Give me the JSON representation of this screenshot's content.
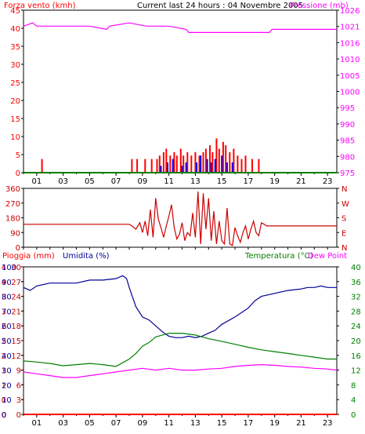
{
  "chart_data": [
    {
      "id": "wind-pressure",
      "type": "line",
      "title": "Current last 24 hours : 04 Novembre 2005",
      "ylabel_left": "Forza vento (kmh)",
      "ylabel_right": "Pressione (mb)",
      "x_ticks": [
        "01",
        "03",
        "05",
        "07",
        "09",
        "11",
        "13",
        "15",
        "17",
        "19",
        "21",
        "23"
      ],
      "y_left_ticks": [
        "0",
        "5",
        "10",
        "15",
        "20",
        "25",
        "30",
        "35",
        "40",
        "45"
      ],
      "ylim_left": [
        0,
        47.5
      ],
      "y_right_ticks": [
        "975",
        "980",
        "985",
        "990",
        "995",
        "1000",
        "1005",
        "1010",
        "1016",
        "1021",
        "1026"
      ],
      "ylim_right": [
        975,
        1026
      ],
      "colors": {
        "wind": "#ff0000",
        "gust": "#0000ff",
        "pressure": "#ff00ff",
        "baseline": "#008000"
      },
      "series": [
        {
          "name": "pressure",
          "axis": "right",
          "x": [
            0,
            0.7,
            1,
            3,
            5,
            6.3,
            6.5,
            8,
            9.3,
            11,
            12.3,
            12.5,
            15,
            17,
            18.6,
            18.8,
            20.8,
            21,
            23.7
          ],
          "y": [
            1021,
            1022,
            1021,
            1021,
            1021,
            1020,
            1021,
            1022,
            1021,
            1021,
            1020,
            1019,
            1019,
            1019,
            1019,
            1020,
            1020,
            1020,
            1020
          ]
        },
        {
          "name": "wind",
          "axis": "left",
          "type": "bar",
          "x": [
            1.4,
            8.2,
            8.6,
            9.2,
            9.7,
            10.1,
            10.3,
            10.6,
            10.8,
            11.1,
            11.4,
            11.6,
            11.9,
            12.1,
            12.4,
            12.7,
            13.0,
            13.3,
            13.6,
            13.8,
            14.1,
            14.3,
            14.6,
            14.8,
            15.1,
            15.3,
            15.6,
            15.9,
            16.2,
            16.5,
            16.8,
            17.3,
            17.8
          ],
          "y": [
            4,
            4,
            4,
            4,
            4,
            4,
            5,
            6,
            7,
            5,
            6,
            5,
            7,
            5,
            6,
            5,
            6,
            5,
            6,
            7,
            8,
            6,
            10,
            7,
            9,
            8,
            6,
            7,
            5,
            4,
            5,
            4,
            4
          ]
        },
        {
          "name": "gust",
          "axis": "left",
          "type": "bar",
          "x": [
            10.4,
            10.9,
            11.3,
            12.0,
            12.3,
            13.1,
            13.4,
            13.9,
            14.2,
            14.5,
            15.0,
            15.4,
            15.8
          ],
          "y": [
            2,
            3,
            4,
            2,
            3,
            3,
            5,
            4,
            3,
            4,
            5,
            3,
            3
          ]
        },
        {
          "name": "baseline",
          "axis": "left",
          "x": [
            0,
            23.7
          ],
          "y": [
            0,
            0
          ]
        }
      ]
    },
    {
      "id": "direction",
      "type": "line",
      "x_ticks": [],
      "y_left_ticks": [
        "0",
        "90",
        "180",
        "270",
        "360"
      ],
      "ylim_left": [
        0,
        360
      ],
      "y_right_ticks": [
        "N",
        "E",
        "S",
        "W",
        "N"
      ],
      "colors": {
        "direction": "#cc0000"
      },
      "series": [
        {
          "name": "direction",
          "axis": "left",
          "x": [
            0,
            1,
            2,
            3,
            4,
            5,
            6,
            7,
            8,
            8.2,
            8.5,
            8.8,
            9.0,
            9.2,
            9.4,
            9.6,
            9.8,
            10.0,
            10.2,
            10.4,
            10.6,
            10.8,
            11.0,
            11.2,
            11.4,
            11.6,
            11.8,
            12.0,
            12.2,
            12.4,
            12.6,
            12.8,
            13.0,
            13.2,
            13.4,
            13.6,
            13.8,
            14.0,
            14.2,
            14.4,
            14.6,
            14.8,
            15.0,
            15.2,
            15.4,
            15.6,
            15.8,
            16.0,
            16.2,
            16.4,
            16.6,
            16.8,
            17.0,
            17.2,
            17.4,
            17.6,
            17.8,
            18.0,
            18.2,
            18.4,
            19,
            20,
            21,
            22,
            23.7
          ],
          "y": [
            140,
            140,
            140,
            140,
            140,
            140,
            140,
            140,
            140,
            130,
            110,
            150,
            90,
            160,
            70,
            230,
            60,
            300,
            170,
            120,
            60,
            130,
            190,
            260,
            120,
            50,
            80,
            150,
            40,
            90,
            70,
            210,
            60,
            340,
            20,
            330,
            110,
            300,
            40,
            220,
            20,
            160,
            40,
            20,
            240,
            20,
            10,
            120,
            70,
            30,
            90,
            130,
            50,
            110,
            160,
            90,
            70,
            150,
            140,
            130,
            130,
            130,
            130,
            130,
            130
          ]
        }
      ]
    },
    {
      "id": "rain-humidity-temp",
      "type": "line",
      "ylabel_left": "Pioggia (mm)",
      "ylabel_left2": "Umidita (%)",
      "ylabel_right": "Temperatura (°C)",
      "ylabel_right2": "Dew Point",
      "x_ticks": [
        "01",
        "03",
        "05",
        "07",
        "09",
        "11",
        "13",
        "15",
        "17",
        "19",
        "21",
        "23"
      ],
      "y_left_ticks": [
        "0",
        "0",
        "1",
        "1",
        "2",
        "2",
        "2",
        "3",
        "3",
        "4",
        "4"
      ],
      "y_left2_ticks": [
        "0",
        "3",
        "6",
        "9",
        "12",
        "15",
        "18",
        "21",
        "24",
        "27",
        "30"
      ],
      "y_left3_ticks": [
        "0",
        "10",
        "20",
        "30",
        "40",
        "50",
        "60",
        "70",
        "80",
        "90",
        "100"
      ],
      "ylim_left3": [
        0,
        100
      ],
      "y_right_ticks": [
        "0",
        "4",
        "8",
        "12",
        "16",
        "20",
        "24",
        "28",
        "32",
        "36",
        "40"
      ],
      "ylim_right": [
        0,
        40
      ],
      "colors": {
        "humidity": "#000099",
        "temperature": "#008000",
        "dewpoint": "#ff00ff",
        "rain": "#ff0000"
      },
      "series": [
        {
          "name": "humidity",
          "axis": "left3",
          "x": [
            0,
            0.5,
            1,
            2,
            3,
            4,
            5,
            6,
            7,
            7.5,
            7.8,
            8.0,
            8.5,
            9.0,
            9.5,
            10,
            10.5,
            11,
            11.5,
            12,
            12.5,
            13,
            13.5,
            14,
            14.5,
            15,
            16,
            17,
            17.5,
            18,
            19,
            20,
            21,
            21.5,
            22,
            22.5,
            23,
            23.7
          ],
          "y": [
            86,
            84,
            87,
            89,
            89,
            89,
            91,
            91,
            92,
            94,
            92,
            86,
            73,
            66,
            64,
            60,
            56,
            53,
            52,
            52,
            53,
            52,
            53,
            55,
            57,
            61,
            66,
            72,
            77,
            80,
            82,
            84,
            85,
            86,
            86,
            87,
            86,
            86
          ]
        },
        {
          "name": "temperature",
          "axis": "right",
          "x": [
            0,
            1,
            2,
            3,
            4,
            5,
            6,
            7,
            7.5,
            8,
            8.5,
            9,
            9.5,
            10,
            11,
            12,
            13,
            14,
            15,
            16,
            17,
            18,
            19,
            20,
            21,
            22,
            23,
            23.7
          ],
          "y": [
            14.5,
            14.2,
            13.8,
            13.2,
            13.5,
            13.8,
            13.5,
            13.0,
            14.0,
            15.0,
            16.5,
            18.5,
            19.5,
            21.0,
            22.0,
            22.0,
            21.5,
            20.5,
            19.8,
            19.0,
            18.2,
            17.5,
            17.0,
            16.5,
            16.0,
            15.5,
            15.0,
            15.0
          ]
        },
        {
          "name": "dewpoint",
          "axis": "right",
          "x": [
            0,
            1,
            2,
            3,
            4,
            5,
            6,
            7,
            8,
            9,
            10,
            11,
            12,
            13,
            14,
            15,
            16,
            17,
            18,
            19,
            20,
            21,
            22,
            23,
            23.7
          ],
          "y": [
            11.5,
            11.0,
            10.5,
            10.0,
            10.0,
            10.5,
            11.0,
            11.5,
            12.0,
            12.5,
            12.0,
            12.5,
            12.0,
            12.0,
            12.3,
            12.5,
            13.0,
            13.3,
            13.5,
            13.3,
            13.0,
            12.8,
            12.5,
            12.3,
            12.0
          ]
        },
        {
          "name": "rain",
          "axis": "left",
          "x": [
            0,
            23.7
          ],
          "y": [
            0,
            0
          ]
        }
      ]
    }
  ]
}
